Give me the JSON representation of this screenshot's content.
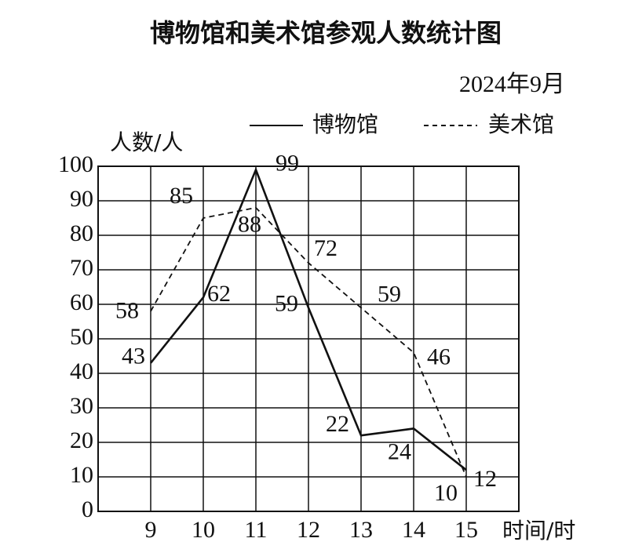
{
  "chart_data": {
    "type": "line",
    "title": "博物馆和美术馆参观人数统计图",
    "subtitle": "2024年9月",
    "y_label": "人数/人",
    "x_label": "时间/时",
    "x": [
      9,
      10,
      11,
      12,
      13,
      14,
      15
    ],
    "xlim": [
      8,
      16
    ],
    "xticks": [
      9,
      10,
      11,
      12,
      13,
      14,
      15
    ],
    "ylim": [
      0,
      100
    ],
    "yticks": [
      0,
      10,
      20,
      30,
      40,
      50,
      60,
      70,
      80,
      90,
      100
    ],
    "grid": true,
    "series": [
      {
        "name": "博物馆",
        "color": "#111111",
        "dash": "solid",
        "values": [
          43,
          62,
          99,
          59,
          22,
          24,
          12
        ]
      },
      {
        "name": "美术馆",
        "color": "#111111",
        "dash": "dashed",
        "values": [
          58,
          85,
          88,
          72,
          59,
          46,
          10
        ]
      }
    ]
  }
}
